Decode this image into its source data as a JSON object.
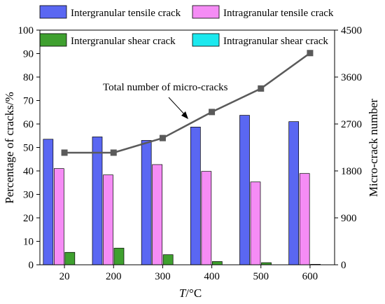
{
  "chart_data": {
    "type": "bar",
    "categories": [
      "20",
      "200",
      "300",
      "400",
      "500",
      "600"
    ],
    "xlabel_italic": "T",
    "xlabel_rest": "/°C",
    "ylabel": "Percentage of cracks/%",
    "y2label": "Micro-crack number",
    "ylim": [
      0,
      100
    ],
    "y2lim": [
      0,
      4500
    ],
    "yticks": [
      0,
      10,
      20,
      30,
      40,
      50,
      60,
      70,
      80,
      90,
      100
    ],
    "y2ticks": [
      0,
      900,
      1800,
      2700,
      3600,
      4500
    ],
    "grid": false,
    "legend_position": "top",
    "series": [
      {
        "name": "Intergranular tensile crack",
        "color": "#5a67f2",
        "values": [
          53.5,
          54.5,
          53,
          58.7,
          63.7,
          61
        ]
      },
      {
        "name": "Intragranular tensile crack",
        "color": "#f58cf5",
        "values": [
          41,
          38.3,
          42.7,
          39.8,
          35.3,
          38.9
        ]
      },
      {
        "name": "Intergranular shear crack",
        "color": "#3fa02f",
        "values": [
          5.3,
          7.1,
          4.3,
          1.4,
          0.9,
          0.2
        ]
      },
      {
        "name": "Intragranular shear crack",
        "color": "#1ce8ee",
        "values": [
          0,
          0,
          0,
          0,
          0,
          0
        ]
      }
    ],
    "line_series": {
      "name": "Total number of micro-cracks",
      "color": "#5a5a5a",
      "axis": "right",
      "values": [
        2150,
        2150,
        2430,
        2930,
        3380,
        4060
      ]
    }
  }
}
